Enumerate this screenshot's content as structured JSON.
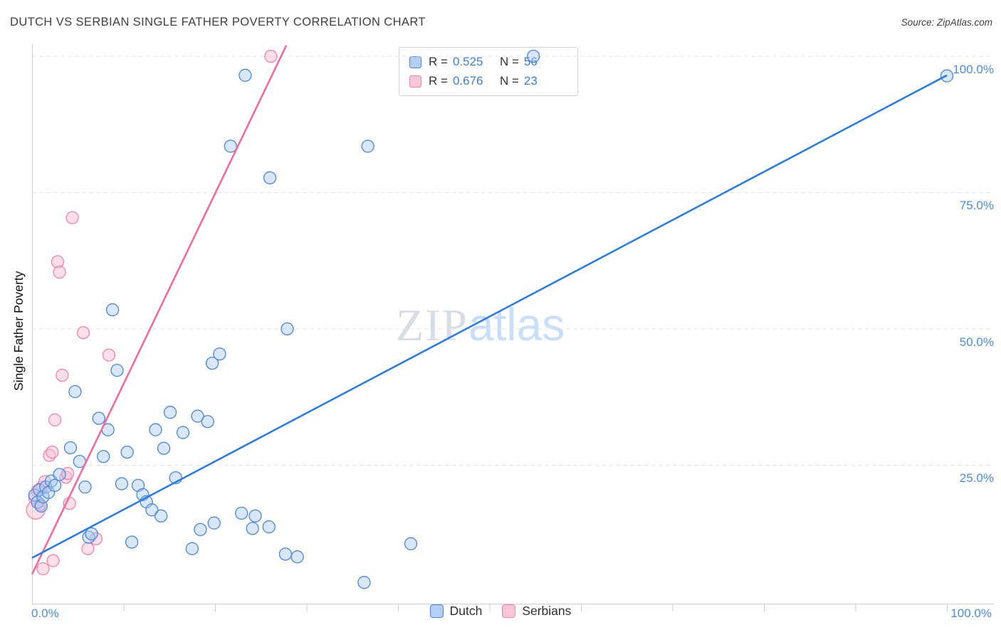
{
  "header": {
    "title": "DUTCH VS SERBIAN SINGLE FATHER POVERTY CORRELATION CHART",
    "source": "Source: ZipAtlas.com"
  },
  "watermark": {
    "part1": "ZIP",
    "part2": "atlas"
  },
  "legend_box": {
    "r_label": "R =",
    "n_label": "N ="
  },
  "axes": {
    "ylabel": "Single Father Poverty",
    "x_min_label": "0.0%",
    "x_max_label": "100.0%",
    "y_tick_labels": [
      "100.0%",
      "75.0%",
      "50.0%",
      "25.0%"
    ]
  },
  "chart_data": {
    "type": "scatter",
    "title": "DUTCH VS SERBIAN SINGLE FATHER POVERTY CORRELATION CHART",
    "xlabel": "",
    "ylabel": "Single Father Poverty",
    "xlim": [
      0,
      105
    ],
    "ylim": [
      0,
      105
    ],
    "x_axis_tick_labels": [
      "0.0%",
      "100.0%"
    ],
    "y_gridlines": [
      25,
      50,
      75,
      100
    ],
    "grid": "horizontal-dashed",
    "legend_position": "top-center and bottom-center",
    "series": [
      {
        "name": "Dutch",
        "R": 0.525,
        "N": 56,
        "point_fill": "#A9C9F3",
        "point_stroke": "#4D86D8",
        "legend_fill": "#B4CFF6",
        "fill_opacity": 0.45,
        "trend": {
          "x1": 0,
          "y1": 8,
          "x2": 100,
          "y2": 96.5,
          "color": "#2B7BE0"
        },
        "points": [
          [
            0.3,
            19.5
          ],
          [
            0.6,
            18.2
          ],
          [
            0.8,
            20.5
          ],
          [
            1.0,
            17.5
          ],
          [
            1.2,
            19.2
          ],
          [
            1.5,
            21.0
          ],
          [
            1.8,
            20.0
          ],
          [
            2.1,
            22.1
          ],
          [
            2.5,
            21.3
          ],
          [
            3.0,
            23.3
          ],
          [
            4.2,
            28.2
          ],
          [
            4.7,
            38.5
          ],
          [
            5.2,
            25.7
          ],
          [
            5.8,
            21.0
          ],
          [
            6.2,
            11.8
          ],
          [
            6.5,
            12.4
          ],
          [
            7.3,
            33.6
          ],
          [
            7.8,
            26.6
          ],
          [
            8.3,
            31.5
          ],
          [
            8.8,
            53.5
          ],
          [
            9.3,
            42.4
          ],
          [
            9.8,
            21.6
          ],
          [
            10.4,
            27.4
          ],
          [
            10.9,
            10.9
          ],
          [
            11.6,
            21.3
          ],
          [
            12.1,
            19.6
          ],
          [
            12.5,
            18.3
          ],
          [
            13.1,
            16.8
          ],
          [
            13.5,
            31.5
          ],
          [
            14.1,
            15.7
          ],
          [
            14.4,
            28.1
          ],
          [
            15.1,
            34.7
          ],
          [
            15.7,
            22.7
          ],
          [
            16.5,
            31.0
          ],
          [
            17.5,
            9.7
          ],
          [
            18.1,
            34.0
          ],
          [
            18.4,
            13.2
          ],
          [
            19.2,
            33.0
          ],
          [
            19.7,
            43.7
          ],
          [
            19.9,
            14.4
          ],
          [
            20.5,
            45.4
          ],
          [
            21.7,
            83.5
          ],
          [
            22.9,
            16.2
          ],
          [
            23.3,
            96.5
          ],
          [
            24.1,
            13.4
          ],
          [
            24.4,
            15.7
          ],
          [
            25.9,
            13.7
          ],
          [
            26.0,
            77.7
          ],
          [
            27.7,
            8.7
          ],
          [
            27.9,
            50.0
          ],
          [
            29.0,
            8.2
          ],
          [
            36.3,
            3.5
          ],
          [
            36.7,
            83.5
          ],
          [
            41.4,
            10.6
          ],
          [
            54.8,
            100.0
          ],
          [
            100,
            96.4
          ]
        ]
      },
      {
        "name": "Serbians",
        "R": 0.676,
        "N": 23,
        "point_fill": "#F9BFD2",
        "point_stroke": "#EE86AC",
        "legend_fill": "#FBC5D8",
        "fill_opacity": 0.5,
        "trend": {
          "x1": 0,
          "y1": 5,
          "x2": 27.8,
          "y2": 102,
          "color": "#EF6D9E"
        },
        "points": [
          [
            0.4,
            16.8,
            13
          ],
          [
            0.3,
            19.0
          ],
          [
            0.6,
            20.3
          ],
          [
            0.9,
            17.8
          ],
          [
            1.1,
            21.0
          ],
          [
            1.4,
            22.0
          ],
          [
            1.2,
            6.0
          ],
          [
            1.9,
            26.8
          ],
          [
            2.2,
            27.4
          ],
          [
            2.3,
            7.5
          ],
          [
            2.5,
            33.3
          ],
          [
            2.8,
            62.3
          ],
          [
            3.0,
            60.4
          ],
          [
            3.3,
            41.5
          ],
          [
            3.7,
            22.8
          ],
          [
            3.9,
            23.5
          ],
          [
            4.1,
            18.0
          ],
          [
            4.4,
            70.4
          ],
          [
            5.6,
            49.3
          ],
          [
            6.1,
            9.7
          ],
          [
            7.0,
            11.5
          ],
          [
            8.4,
            45.2
          ],
          [
            26.1,
            100.0
          ]
        ]
      }
    ]
  }
}
